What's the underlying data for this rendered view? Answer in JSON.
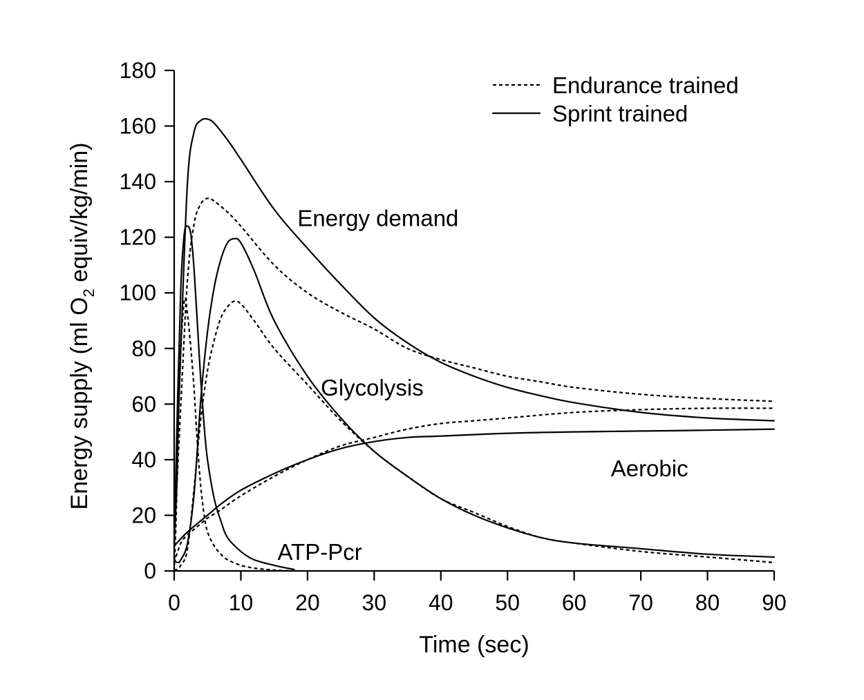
{
  "chart_data": {
    "type": "line",
    "title": "",
    "xlabel": "Time (sec)",
    "ylabel_parts": [
      "Energy supply (ml O",
      "2",
      " equiv/kg/min)"
    ],
    "xlim": [
      0,
      90
    ],
    "ylim": [
      0,
      180
    ],
    "xticks": [
      0,
      10,
      20,
      30,
      40,
      50,
      60,
      70,
      80,
      90
    ],
    "yticks": [
      0,
      20,
      40,
      60,
      80,
      100,
      120,
      140,
      160,
      180
    ],
    "grid": false,
    "legend_position": "top-right",
    "legend": [
      {
        "label": "Endurance trained",
        "style": "dashed"
      },
      {
        "label": "Sprint trained",
        "style": "solid"
      }
    ],
    "annotations": [
      {
        "text": "Energy demand",
        "x": 18.5,
        "y": 127
      },
      {
        "text": "Glycolysis",
        "x": 22,
        "y": 66
      },
      {
        "text": "Aerobic",
        "x": 65.5,
        "y": 37
      },
      {
        "text": "ATP-Pcr",
        "x": 15.5,
        "y": 7
      }
    ],
    "series": [
      {
        "group": "Energy demand",
        "style": "dashed",
        "points": [
          [
            0,
            10
          ],
          [
            1,
            60
          ],
          [
            2,
            105
          ],
          [
            3,
            125
          ],
          [
            4,
            132
          ],
          [
            5,
            134
          ],
          [
            6,
            133
          ],
          [
            8,
            129
          ],
          [
            10,
            124
          ],
          [
            15,
            110
          ],
          [
            20,
            100
          ],
          [
            25,
            93
          ],
          [
            30,
            87
          ],
          [
            35,
            80
          ],
          [
            40,
            76
          ],
          [
            45,
            73
          ],
          [
            50,
            70
          ],
          [
            55,
            68
          ],
          [
            60,
            66
          ],
          [
            70,
            63.5
          ],
          [
            80,
            62
          ],
          [
            90,
            61
          ]
        ]
      },
      {
        "group": "Energy demand",
        "style": "solid",
        "points": [
          [
            0,
            10
          ],
          [
            1,
            80
          ],
          [
            2,
            140
          ],
          [
            3,
            158
          ],
          [
            4,
            162
          ],
          [
            5,
            162.5
          ],
          [
            6,
            161
          ],
          [
            8,
            155
          ],
          [
            10,
            148
          ],
          [
            15,
            130
          ],
          [
            20,
            116
          ],
          [
            25,
            103
          ],
          [
            30,
            91
          ],
          [
            35,
            82
          ],
          [
            40,
            75
          ],
          [
            45,
            70
          ],
          [
            50,
            66
          ],
          [
            55,
            63
          ],
          [
            60,
            60.5
          ],
          [
            70,
            57
          ],
          [
            80,
            55
          ],
          [
            90,
            54
          ]
        ]
      },
      {
        "group": "Glycolysis",
        "style": "dashed",
        "points": [
          [
            0,
            0
          ],
          [
            1,
            2
          ],
          [
            2,
            8
          ],
          [
            3,
            30
          ],
          [
            4,
            55
          ],
          [
            5,
            72
          ],
          [
            6,
            83
          ],
          [
            7,
            91
          ],
          [
            8,
            95
          ],
          [
            9,
            97
          ],
          [
            10,
            96
          ],
          [
            12,
            90
          ],
          [
            15,
            80
          ],
          [
            20,
            67
          ],
          [
            25,
            54
          ],
          [
            30,
            43
          ],
          [
            35,
            34
          ],
          [
            40,
            26
          ],
          [
            45,
            21
          ],
          [
            50,
            16
          ],
          [
            55,
            12
          ],
          [
            60,
            10
          ],
          [
            70,
            7
          ],
          [
            80,
            5
          ],
          [
            90,
            3
          ]
        ]
      },
      {
        "group": "Glycolysis",
        "style": "solid",
        "points": [
          [
            0,
            4
          ],
          [
            0.5,
            3
          ],
          [
            1,
            4
          ],
          [
            2,
            10
          ],
          [
            3,
            28
          ],
          [
            4,
            62
          ],
          [
            5,
            86
          ],
          [
            6,
            102
          ],
          [
            7,
            112
          ],
          [
            8,
            118
          ],
          [
            9,
            119.5
          ],
          [
            10,
            118
          ],
          [
            12,
            108
          ],
          [
            15,
            90
          ],
          [
            20,
            70
          ],
          [
            25,
            55
          ],
          [
            30,
            43
          ],
          [
            35,
            34
          ],
          [
            40,
            26
          ],
          [
            45,
            20
          ],
          [
            50,
            15.5
          ],
          [
            55,
            12
          ],
          [
            60,
            10
          ],
          [
            70,
            8
          ],
          [
            80,
            6
          ],
          [
            90,
            5
          ]
        ]
      },
      {
        "group": "Aerobic",
        "style": "dashed",
        "points": [
          [
            0,
            3
          ],
          [
            1,
            10
          ],
          [
            2,
            13
          ],
          [
            3,
            15
          ],
          [
            4,
            17
          ],
          [
            5,
            19
          ],
          [
            7,
            22
          ],
          [
            10,
            27
          ],
          [
            15,
            34
          ],
          [
            20,
            40
          ],
          [
            25,
            45
          ],
          [
            30,
            48
          ],
          [
            35,
            51
          ],
          [
            40,
            53
          ],
          [
            45,
            54
          ],
          [
            50,
            55
          ],
          [
            60,
            57
          ],
          [
            70,
            58
          ],
          [
            80,
            58.5
          ],
          [
            90,
            58.5
          ]
        ]
      },
      {
        "group": "Aerobic",
        "style": "solid",
        "points": [
          [
            0,
            9
          ],
          [
            2,
            14
          ],
          [
            5,
            20
          ],
          [
            7,
            24
          ],
          [
            10,
            29
          ],
          [
            15,
            35
          ],
          [
            20,
            40
          ],
          [
            25,
            44
          ],
          [
            30,
            46.5
          ],
          [
            35,
            48
          ],
          [
            40,
            48.5
          ],
          [
            50,
            49.5
          ],
          [
            60,
            50
          ],
          [
            70,
            50.3
          ],
          [
            80,
            50.6
          ],
          [
            90,
            51
          ]
        ]
      },
      {
        "group": "ATP-Pcr",
        "style": "dashed",
        "points": [
          [
            0,
            0
          ],
          [
            0.3,
            20
          ],
          [
            0.8,
            70
          ],
          [
            1.5,
            97
          ],
          [
            2,
            92
          ],
          [
            2.5,
            80
          ],
          [
            3,
            65
          ],
          [
            3.5,
            45
          ],
          [
            4,
            30
          ],
          [
            4.5,
            20
          ],
          [
            5,
            14
          ],
          [
            6,
            9
          ],
          [
            7,
            6
          ],
          [
            8,
            4
          ],
          [
            10,
            2
          ],
          [
            12,
            1
          ],
          [
            15,
            0.3
          ],
          [
            18,
            0
          ]
        ]
      },
      {
        "group": "ATP-Pcr",
        "style": "solid",
        "points": [
          [
            0,
            8
          ],
          [
            0.5,
            60
          ],
          [
            1,
            102
          ],
          [
            1.5,
            121
          ],
          [
            2,
            124
          ],
          [
            2.5,
            121
          ],
          [
            3,
            108
          ],
          [
            3.5,
            88
          ],
          [
            4,
            68
          ],
          [
            4.5,
            52
          ],
          [
            5,
            40
          ],
          [
            6,
            26
          ],
          [
            7,
            18
          ],
          [
            8,
            12
          ],
          [
            10,
            7
          ],
          [
            12,
            4
          ],
          [
            15,
            2
          ],
          [
            18,
            0.5
          ]
        ]
      }
    ]
  }
}
